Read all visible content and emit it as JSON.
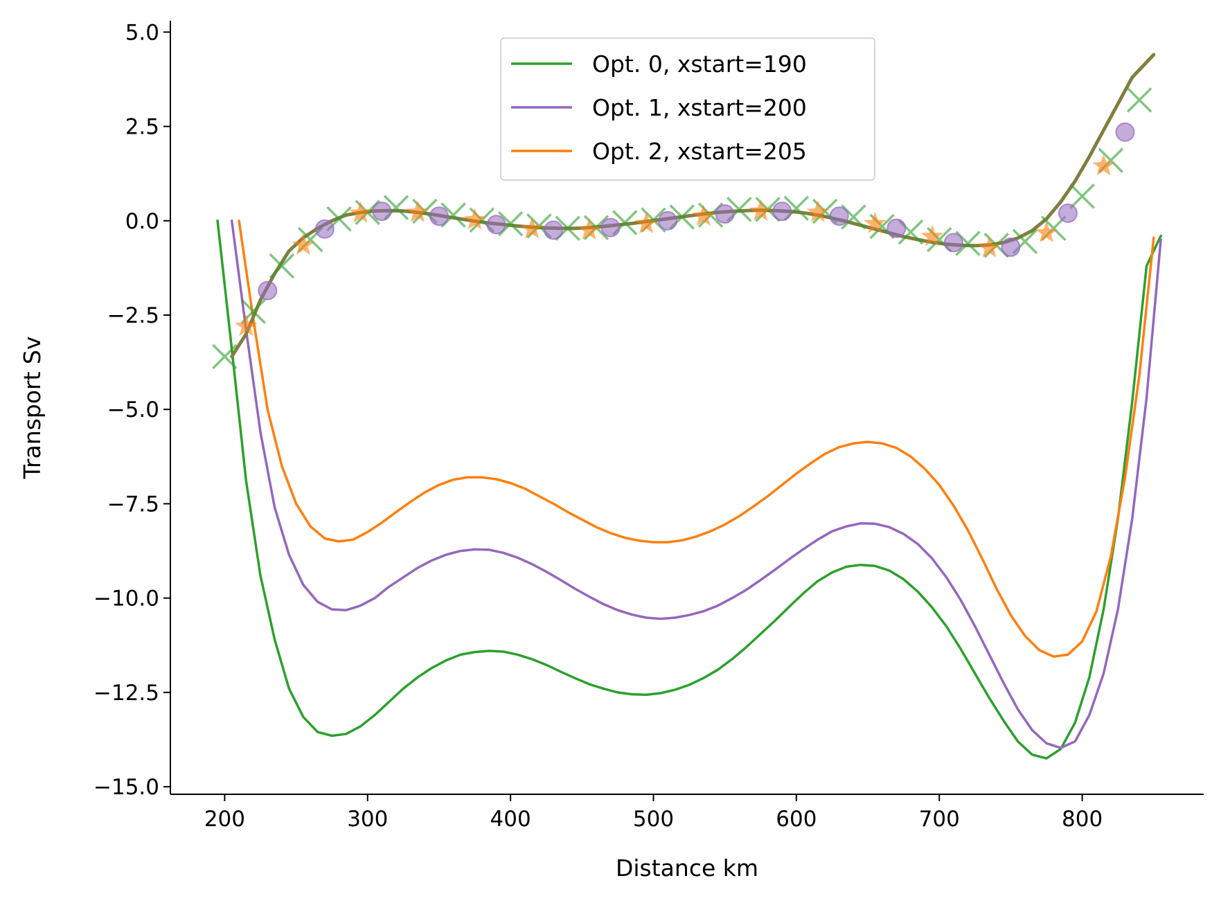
{
  "chart_data": {
    "type": "line",
    "xlabel": "Distance km",
    "ylabel": "Transport Sv",
    "xlim": [
      162,
      885
    ],
    "ylim": [
      -15.2,
      5.3
    ],
    "xticks": [
      200,
      300,
      400,
      500,
      600,
      700,
      800
    ],
    "xtick_labels": [
      "200",
      "300",
      "400",
      "500",
      "600",
      "700",
      "800"
    ],
    "yticks": [
      5.0,
      2.5,
      0.0,
      -2.5,
      -5.0,
      -7.5,
      -10.0,
      -12.5,
      -15.0
    ],
    "ytick_labels": [
      "5.0",
      "2.5",
      "0.0",
      "−2.5",
      "−5.0",
      "−7.5",
      "−10.0",
      "−12.5",
      "−15.0"
    ],
    "legend_position": "top-center",
    "series": [
      {
        "name": "Opt. 0, xstart=190",
        "color": "#2ca02c",
        "x": [
          195,
          205,
          215,
          225,
          235,
          245,
          255,
          265,
          275,
          285,
          295,
          305,
          315,
          325,
          335,
          345,
          355,
          365,
          375,
          385,
          395,
          405,
          415,
          425,
          435,
          445,
          455,
          465,
          475,
          485,
          495,
          505,
          515,
          525,
          535,
          545,
          555,
          565,
          575,
          585,
          595,
          605,
          615,
          625,
          635,
          645,
          655,
          665,
          675,
          685,
          695,
          705,
          715,
          725,
          735,
          745,
          755,
          765,
          775,
          785,
          795,
          805,
          815,
          825,
          835,
          845,
          855
        ],
        "y": [
          0.0,
          -3.4,
          -6.9,
          -9.4,
          -11.1,
          -12.4,
          -13.15,
          -13.55,
          -13.65,
          -13.6,
          -13.4,
          -13.1,
          -12.75,
          -12.4,
          -12.1,
          -11.85,
          -11.65,
          -11.5,
          -11.43,
          -11.4,
          -11.42,
          -11.5,
          -11.62,
          -11.77,
          -11.95,
          -12.12,
          -12.28,
          -12.4,
          -12.5,
          -12.55,
          -12.56,
          -12.52,
          -12.43,
          -12.3,
          -12.12,
          -11.9,
          -11.62,
          -11.3,
          -10.95,
          -10.6,
          -10.23,
          -9.87,
          -9.55,
          -9.32,
          -9.17,
          -9.12,
          -9.15,
          -9.27,
          -9.5,
          -9.83,
          -10.25,
          -10.75,
          -11.35,
          -12.0,
          -12.65,
          -13.25,
          -13.8,
          -14.15,
          -14.25,
          -14.0,
          -13.3,
          -12.1,
          -10.3,
          -7.9,
          -4.8,
          -1.2,
          -0.4
        ]
      },
      {
        "name": "Opt. 1, xstart=200",
        "color": "#9467bd",
        "x": [
          205,
          215,
          225,
          235,
          245,
          255,
          265,
          275,
          285,
          295,
          305,
          315,
          325,
          335,
          345,
          355,
          365,
          375,
          385,
          395,
          405,
          415,
          425,
          435,
          445,
          455,
          465,
          475,
          485,
          495,
          505,
          515,
          525,
          535,
          545,
          555,
          565,
          575,
          585,
          595,
          605,
          615,
          625,
          635,
          645,
          655,
          665,
          675,
          685,
          695,
          705,
          715,
          725,
          735,
          745,
          755,
          765,
          775,
          785,
          795,
          805,
          815,
          825,
          835,
          845,
          855
        ],
        "y": [
          0.0,
          -2.9,
          -5.6,
          -7.6,
          -8.85,
          -9.65,
          -10.1,
          -10.3,
          -10.32,
          -10.2,
          -10.0,
          -9.7,
          -9.45,
          -9.2,
          -9.0,
          -8.85,
          -8.75,
          -8.71,
          -8.72,
          -8.8,
          -8.93,
          -9.1,
          -9.3,
          -9.52,
          -9.75,
          -9.96,
          -10.16,
          -10.32,
          -10.44,
          -10.52,
          -10.55,
          -10.52,
          -10.45,
          -10.35,
          -10.2,
          -10.0,
          -9.78,
          -9.52,
          -9.25,
          -8.97,
          -8.7,
          -8.45,
          -8.23,
          -8.1,
          -8.02,
          -8.03,
          -8.12,
          -8.3,
          -8.57,
          -8.95,
          -9.45,
          -10.05,
          -10.75,
          -11.5,
          -12.25,
          -12.95,
          -13.5,
          -13.85,
          -13.97,
          -13.8,
          -13.1,
          -12.0,
          -10.3,
          -7.9,
          -4.7,
          -0.5
        ]
      },
      {
        "name": "Opt. 2, xstart=205",
        "color": "#ff7f0e",
        "x": [
          210,
          220,
          230,
          240,
          250,
          260,
          270,
          280,
          290,
          300,
          310,
          320,
          330,
          340,
          350,
          360,
          370,
          380,
          390,
          400,
          410,
          420,
          430,
          440,
          450,
          460,
          470,
          480,
          490,
          500,
          510,
          520,
          530,
          540,
          550,
          560,
          570,
          580,
          590,
          600,
          610,
          620,
          630,
          640,
          650,
          660,
          670,
          680,
          690,
          700,
          710,
          720,
          730,
          740,
          750,
          760,
          770,
          780,
          790,
          800,
          810,
          820,
          830,
          840,
          850
        ],
        "y": [
          0.0,
          -2.6,
          -5.0,
          -6.5,
          -7.5,
          -8.1,
          -8.42,
          -8.5,
          -8.45,
          -8.25,
          -8.0,
          -7.72,
          -7.45,
          -7.2,
          -7.0,
          -6.86,
          -6.8,
          -6.8,
          -6.85,
          -6.95,
          -7.1,
          -7.3,
          -7.5,
          -7.72,
          -7.92,
          -8.12,
          -8.28,
          -8.4,
          -8.48,
          -8.52,
          -8.52,
          -8.47,
          -8.37,
          -8.23,
          -8.05,
          -7.83,
          -7.57,
          -7.3,
          -7.0,
          -6.7,
          -6.43,
          -6.18,
          -6.0,
          -5.9,
          -5.86,
          -5.9,
          -6.02,
          -6.25,
          -6.58,
          -7.0,
          -7.55,
          -8.2,
          -8.95,
          -9.75,
          -10.45,
          -11.0,
          -11.38,
          -11.55,
          -11.5,
          -11.15,
          -10.35,
          -8.9,
          -6.8,
          -4.1,
          -0.45
        ]
      },
      {
        "name": "",
        "color": "#7f7f40",
        "x": [
          205,
          215,
          225,
          235,
          245,
          255,
          265,
          275,
          285,
          295,
          305,
          315,
          325,
          335,
          345,
          355,
          365,
          375,
          385,
          395,
          405,
          415,
          425,
          435,
          445,
          455,
          465,
          475,
          485,
          495,
          505,
          515,
          525,
          535,
          545,
          555,
          565,
          575,
          585,
          595,
          605,
          615,
          625,
          635,
          645,
          655,
          665,
          675,
          685,
          695,
          705,
          715,
          725,
          735,
          745,
          755,
          765,
          775,
          785,
          795,
          805,
          815,
          825,
          835,
          845,
          850
        ],
        "y": [
          -3.6,
          -3.0,
          -2.1,
          -1.4,
          -0.8,
          -0.45,
          -0.2,
          0.0,
          0.15,
          0.22,
          0.26,
          0.27,
          0.26,
          0.22,
          0.17,
          0.11,
          0.05,
          -0.01,
          -0.06,
          -0.1,
          -0.14,
          -0.17,
          -0.19,
          -0.2,
          -0.2,
          -0.18,
          -0.15,
          -0.11,
          -0.07,
          -0.02,
          0.03,
          0.08,
          0.13,
          0.18,
          0.22,
          0.25,
          0.27,
          0.28,
          0.27,
          0.25,
          0.21,
          0.15,
          0.07,
          -0.02,
          -0.12,
          -0.22,
          -0.32,
          -0.42,
          -0.5,
          -0.57,
          -0.62,
          -0.65,
          -0.66,
          -0.64,
          -0.58,
          -0.46,
          -0.26,
          0.05,
          0.5,
          1.05,
          1.7,
          2.4,
          3.1,
          3.8,
          4.2,
          4.4
        ]
      }
    ],
    "markers": [
      {
        "series": "Opt. 0, xstart=190",
        "symbol": "x",
        "color": "#2ca02c",
        "x": [
          200,
          220,
          240,
          260,
          280,
          300,
          320,
          340,
          360,
          380,
          400,
          420,
          440,
          460,
          480,
          500,
          520,
          540,
          560,
          580,
          600,
          620,
          640,
          660,
          680,
          700,
          720,
          740,
          760,
          780,
          800,
          820,
          840
        ],
        "y": [
          -3.6,
          -2.4,
          -1.2,
          -0.5,
          0.05,
          0.22,
          0.35,
          0.25,
          0.15,
          0.02,
          -0.08,
          -0.14,
          -0.2,
          -0.18,
          -0.05,
          0.02,
          0.1,
          0.15,
          0.3,
          0.3,
          0.33,
          0.25,
          0.1,
          -0.15,
          -0.3,
          -0.5,
          -0.6,
          -0.65,
          -0.55,
          -0.2,
          0.65,
          1.6,
          3.2
        ]
      },
      {
        "series": "Opt. 1, xstart=200",
        "symbol": "circle",
        "color": "#9467bd",
        "x": [
          230,
          270,
          310,
          350,
          390,
          430,
          470,
          510,
          550,
          590,
          630,
          670,
          710,
          750,
          790,
          830
        ],
        "y": [
          -1.85,
          -0.22,
          0.25,
          0.12,
          -0.1,
          -0.25,
          -0.18,
          0.0,
          0.18,
          0.25,
          0.12,
          -0.2,
          -0.58,
          -0.7,
          0.2,
          2.35
        ]
      },
      {
        "series": "Opt. 2, xstart=205",
        "symbol": "star",
        "color": "#ff7f0e",
        "x": [
          215,
          255,
          295,
          335,
          375,
          415,
          455,
          495,
          535,
          575,
          615,
          655,
          695,
          735,
          775,
          815
        ],
        "y": [
          -2.8,
          -0.65,
          0.2,
          0.22,
          0.02,
          -0.22,
          -0.25,
          -0.08,
          0.12,
          0.25,
          0.22,
          -0.08,
          -0.42,
          -0.72,
          -0.32,
          1.45
        ]
      }
    ]
  }
}
